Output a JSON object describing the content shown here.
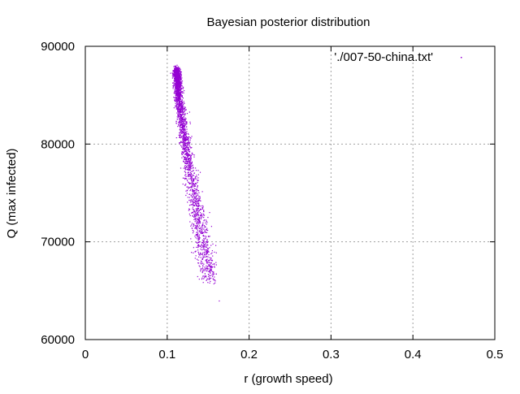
{
  "chart_data": {
    "type": "scatter",
    "title": "Bayesian posterior distribution",
    "xlabel": "r (growth speed)",
    "ylabel": "Q (max infected)",
    "xlim": [
      0,
      0.5
    ],
    "ylim": [
      60000,
      90000
    ],
    "x_ticks": [
      0,
      0.1,
      0.2,
      0.3,
      0.4,
      0.5
    ],
    "x_tick_labels": [
      "0",
      "0.1",
      "0.2",
      "0.3",
      "0.4",
      "0.5"
    ],
    "y_ticks": [
      60000,
      70000,
      80000,
      90000
    ],
    "y_tick_labels": [
      "60000",
      "70000",
      "80000",
      "90000"
    ],
    "grid": true,
    "legend_position": "top-right",
    "series": [
      {
        "name": "'./007-50-china.txt'",
        "color": "#9400d3",
        "marker": "dot",
        "approx_points": [
          [
            0.111,
            87500
          ],
          [
            0.112,
            86500
          ],
          [
            0.113,
            85500
          ],
          [
            0.114,
            84500
          ],
          [
            0.116,
            83500
          ],
          [
            0.117,
            82500
          ],
          [
            0.119,
            81500
          ],
          [
            0.121,
            80500
          ],
          [
            0.123,
            79500
          ],
          [
            0.125,
            78500
          ],
          [
            0.127,
            77500
          ],
          [
            0.129,
            76500
          ],
          [
            0.132,
            75000
          ],
          [
            0.134,
            74000
          ],
          [
            0.136,
            73000
          ],
          [
            0.138,
            72000
          ],
          [
            0.14,
            71000
          ],
          [
            0.142,
            70000
          ],
          [
            0.145,
            69000
          ],
          [
            0.148,
            68000
          ],
          [
            0.15,
            67000
          ],
          [
            0.152,
            66000
          ],
          [
            0.163,
            64000
          ]
        ]
      }
    ]
  }
}
